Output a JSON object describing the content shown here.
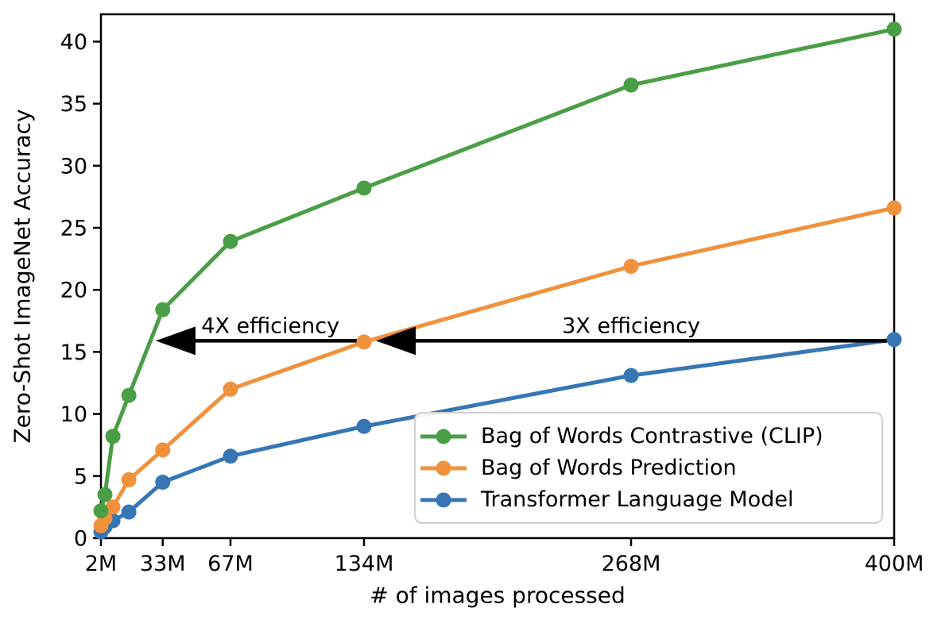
{
  "chart_data": {
    "type": "line",
    "title": "",
    "xlabel": "# of images processed",
    "ylabel": "Zero-Shot ImageNet Accuracy",
    "xlim": [
      2,
      400
    ],
    "ylim": [
      0,
      42.2
    ],
    "grid": false,
    "legend_position": "lower-right-inside",
    "x_unit": "millions of images",
    "x": [
      2,
      4,
      8,
      16,
      33,
      67,
      134,
      268,
      400
    ],
    "x_ticks": [
      {
        "value": 2,
        "label": "2M"
      },
      {
        "value": 33,
        "label": "33M"
      },
      {
        "value": 67,
        "label": "67M"
      },
      {
        "value": 134,
        "label": "134M"
      },
      {
        "value": 268,
        "label": "268M"
      },
      {
        "value": 400,
        "label": "400M"
      }
    ],
    "y_ticks": [
      0,
      5,
      10,
      15,
      20,
      25,
      30,
      35,
      40
    ],
    "series": [
      {
        "name": "Bag of Words Contrastive (CLIP)",
        "slug": "bag-of-words-contrastive-clip",
        "color": "#4a9e45",
        "values": [
          2.2,
          3.5,
          8.2,
          11.5,
          18.4,
          23.9,
          28.2,
          36.5,
          41.0
        ]
      },
      {
        "name": "Bag of Words Prediction",
        "slug": "bag-of-words-prediction",
        "color": "#f0913c",
        "values": [
          1.0,
          1.6,
          2.5,
          4.7,
          7.1,
          12.0,
          15.8,
          21.9,
          26.6
        ]
      },
      {
        "name": "Transformer Language Model",
        "slug": "transformer-language-model",
        "color": "#3776b4",
        "values": [
          0.5,
          0.9,
          1.4,
          2.1,
          4.5,
          6.6,
          9.0,
          13.1,
          16.0
        ]
      }
    ],
    "annotations": [
      {
        "text": "4X efficiency",
        "arrow_y": 15.9,
        "x_from": 134,
        "x_to": 29.5,
        "text_x": 87,
        "text_y": 17.1
      },
      {
        "text": "3X efficiency",
        "arrow_y": 15.9,
        "x_from": 400,
        "x_to": 140,
        "text_x": 268,
        "text_y": 17.1
      }
    ],
    "arrow_color": "#000000",
    "axis_color": "#000000"
  }
}
